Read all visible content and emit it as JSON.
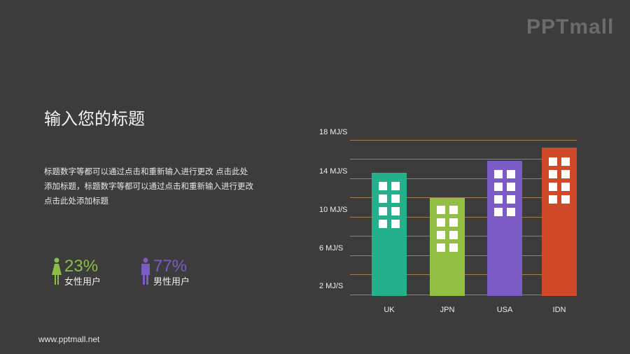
{
  "logo": "PPTmall",
  "title": "输入您的标题",
  "description": "标题数字等都可以通过点击和重新输入进行更改  点击此处添加标题，标题数字等都可以通过点击和重新输入进行更改 点击此处添加标题",
  "stats": [
    {
      "icon": "female-icon",
      "percent": "23%",
      "label": "女性用户",
      "color": "#8cbd45"
    },
    {
      "icon": "male-icon",
      "percent": "77%",
      "label": "男性用户",
      "color": "#7c5cc4"
    }
  ],
  "footer": "www.pptmall.net",
  "chart_data": {
    "type": "bar",
    "title": "",
    "xlabel": "",
    "ylabel": "",
    "unit": "MJ/S",
    "categories": [
      "UK",
      "JPN",
      "USA",
      "IDN"
    ],
    "values": [
      14.6,
      12.0,
      15.8,
      17.2
    ],
    "colors": [
      "#25b08c",
      "#93bf45",
      "#7b5cc6",
      "#d04a2a"
    ],
    "yticks": [
      "18 MJ/S",
      "14 MJ/S",
      "10 MJ/S",
      "6 MJ/S",
      "2 MJ/S"
    ],
    "ylim": [
      2,
      18
    ],
    "grid": true,
    "legend": "none"
  }
}
